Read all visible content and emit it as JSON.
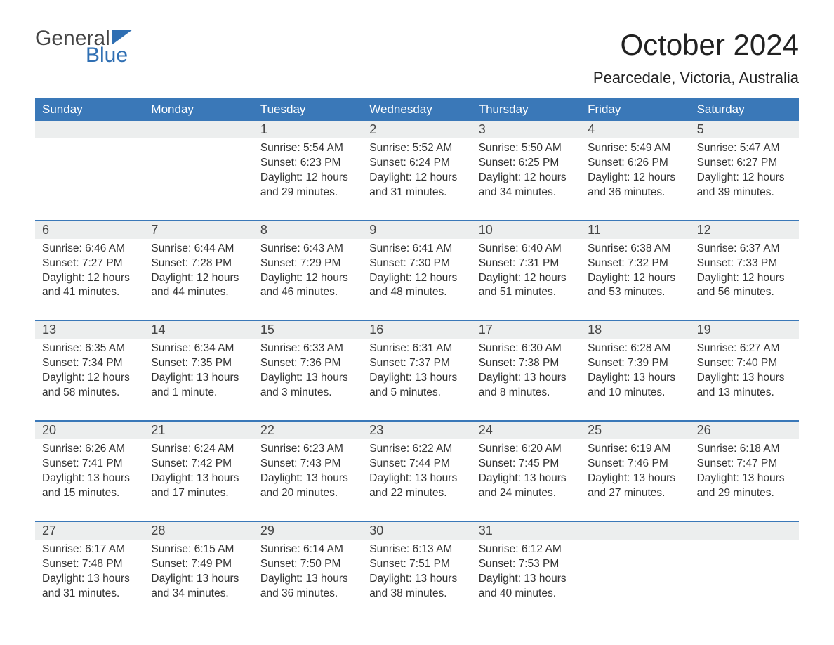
{
  "logo": {
    "text1": "General",
    "text2": "Blue",
    "icon_color": "#2f6fb3",
    "text1_color": "#444444"
  },
  "title": "October 2024",
  "location": "Pearcedale, Victoria, Australia",
  "colors": {
    "header_bg": "#3a78b8",
    "header_text": "#ffffff",
    "daynum_bg": "#eceeee",
    "border": "#3a78b8",
    "body_text": "#333333",
    "background": "#ffffff"
  },
  "fonts": {
    "title_pt": 42,
    "location_pt": 22,
    "dow_pt": 17,
    "daynum_pt": 18,
    "body_pt": 15.5
  },
  "days_of_week": [
    "Sunday",
    "Monday",
    "Tuesday",
    "Wednesday",
    "Thursday",
    "Friday",
    "Saturday"
  ],
  "weeks": [
    [
      {
        "n": "",
        "sunrise": "",
        "sunset": "",
        "daylight": ""
      },
      {
        "n": "",
        "sunrise": "",
        "sunset": "",
        "daylight": ""
      },
      {
        "n": "1",
        "sunrise": "Sunrise: 5:54 AM",
        "sunset": "Sunset: 6:23 PM",
        "daylight": "Daylight: 12 hours and 29 minutes."
      },
      {
        "n": "2",
        "sunrise": "Sunrise: 5:52 AM",
        "sunset": "Sunset: 6:24 PM",
        "daylight": "Daylight: 12 hours and 31 minutes."
      },
      {
        "n": "3",
        "sunrise": "Sunrise: 5:50 AM",
        "sunset": "Sunset: 6:25 PM",
        "daylight": "Daylight: 12 hours and 34 minutes."
      },
      {
        "n": "4",
        "sunrise": "Sunrise: 5:49 AM",
        "sunset": "Sunset: 6:26 PM",
        "daylight": "Daylight: 12 hours and 36 minutes."
      },
      {
        "n": "5",
        "sunrise": "Sunrise: 5:47 AM",
        "sunset": "Sunset: 6:27 PM",
        "daylight": "Daylight: 12 hours and 39 minutes."
      }
    ],
    [
      {
        "n": "6",
        "sunrise": "Sunrise: 6:46 AM",
        "sunset": "Sunset: 7:27 PM",
        "daylight": "Daylight: 12 hours and 41 minutes."
      },
      {
        "n": "7",
        "sunrise": "Sunrise: 6:44 AM",
        "sunset": "Sunset: 7:28 PM",
        "daylight": "Daylight: 12 hours and 44 minutes."
      },
      {
        "n": "8",
        "sunrise": "Sunrise: 6:43 AM",
        "sunset": "Sunset: 7:29 PM",
        "daylight": "Daylight: 12 hours and 46 minutes."
      },
      {
        "n": "9",
        "sunrise": "Sunrise: 6:41 AM",
        "sunset": "Sunset: 7:30 PM",
        "daylight": "Daylight: 12 hours and 48 minutes."
      },
      {
        "n": "10",
        "sunrise": "Sunrise: 6:40 AM",
        "sunset": "Sunset: 7:31 PM",
        "daylight": "Daylight: 12 hours and 51 minutes."
      },
      {
        "n": "11",
        "sunrise": "Sunrise: 6:38 AM",
        "sunset": "Sunset: 7:32 PM",
        "daylight": "Daylight: 12 hours and 53 minutes."
      },
      {
        "n": "12",
        "sunrise": "Sunrise: 6:37 AM",
        "sunset": "Sunset: 7:33 PM",
        "daylight": "Daylight: 12 hours and 56 minutes."
      }
    ],
    [
      {
        "n": "13",
        "sunrise": "Sunrise: 6:35 AM",
        "sunset": "Sunset: 7:34 PM",
        "daylight": "Daylight: 12 hours and 58 minutes."
      },
      {
        "n": "14",
        "sunrise": "Sunrise: 6:34 AM",
        "sunset": "Sunset: 7:35 PM",
        "daylight": "Daylight: 13 hours and 1 minute."
      },
      {
        "n": "15",
        "sunrise": "Sunrise: 6:33 AM",
        "sunset": "Sunset: 7:36 PM",
        "daylight": "Daylight: 13 hours and 3 minutes."
      },
      {
        "n": "16",
        "sunrise": "Sunrise: 6:31 AM",
        "sunset": "Sunset: 7:37 PM",
        "daylight": "Daylight: 13 hours and 5 minutes."
      },
      {
        "n": "17",
        "sunrise": "Sunrise: 6:30 AM",
        "sunset": "Sunset: 7:38 PM",
        "daylight": "Daylight: 13 hours and 8 minutes."
      },
      {
        "n": "18",
        "sunrise": "Sunrise: 6:28 AM",
        "sunset": "Sunset: 7:39 PM",
        "daylight": "Daylight: 13 hours and 10 minutes."
      },
      {
        "n": "19",
        "sunrise": "Sunrise: 6:27 AM",
        "sunset": "Sunset: 7:40 PM",
        "daylight": "Daylight: 13 hours and 13 minutes."
      }
    ],
    [
      {
        "n": "20",
        "sunrise": "Sunrise: 6:26 AM",
        "sunset": "Sunset: 7:41 PM",
        "daylight": "Daylight: 13 hours and 15 minutes."
      },
      {
        "n": "21",
        "sunrise": "Sunrise: 6:24 AM",
        "sunset": "Sunset: 7:42 PM",
        "daylight": "Daylight: 13 hours and 17 minutes."
      },
      {
        "n": "22",
        "sunrise": "Sunrise: 6:23 AM",
        "sunset": "Sunset: 7:43 PM",
        "daylight": "Daylight: 13 hours and 20 minutes."
      },
      {
        "n": "23",
        "sunrise": "Sunrise: 6:22 AM",
        "sunset": "Sunset: 7:44 PM",
        "daylight": "Daylight: 13 hours and 22 minutes."
      },
      {
        "n": "24",
        "sunrise": "Sunrise: 6:20 AM",
        "sunset": "Sunset: 7:45 PM",
        "daylight": "Daylight: 13 hours and 24 minutes."
      },
      {
        "n": "25",
        "sunrise": "Sunrise: 6:19 AM",
        "sunset": "Sunset: 7:46 PM",
        "daylight": "Daylight: 13 hours and 27 minutes."
      },
      {
        "n": "26",
        "sunrise": "Sunrise: 6:18 AM",
        "sunset": "Sunset: 7:47 PM",
        "daylight": "Daylight: 13 hours and 29 minutes."
      }
    ],
    [
      {
        "n": "27",
        "sunrise": "Sunrise: 6:17 AM",
        "sunset": "Sunset: 7:48 PM",
        "daylight": "Daylight: 13 hours and 31 minutes."
      },
      {
        "n": "28",
        "sunrise": "Sunrise: 6:15 AM",
        "sunset": "Sunset: 7:49 PM",
        "daylight": "Daylight: 13 hours and 34 minutes."
      },
      {
        "n": "29",
        "sunrise": "Sunrise: 6:14 AM",
        "sunset": "Sunset: 7:50 PM",
        "daylight": "Daylight: 13 hours and 36 minutes."
      },
      {
        "n": "30",
        "sunrise": "Sunrise: 6:13 AM",
        "sunset": "Sunset: 7:51 PM",
        "daylight": "Daylight: 13 hours and 38 minutes."
      },
      {
        "n": "31",
        "sunrise": "Sunrise: 6:12 AM",
        "sunset": "Sunset: 7:53 PM",
        "daylight": "Daylight: 13 hours and 40 minutes."
      },
      {
        "n": "",
        "sunrise": "",
        "sunset": "",
        "daylight": ""
      },
      {
        "n": "",
        "sunrise": "",
        "sunset": "",
        "daylight": ""
      }
    ]
  ]
}
